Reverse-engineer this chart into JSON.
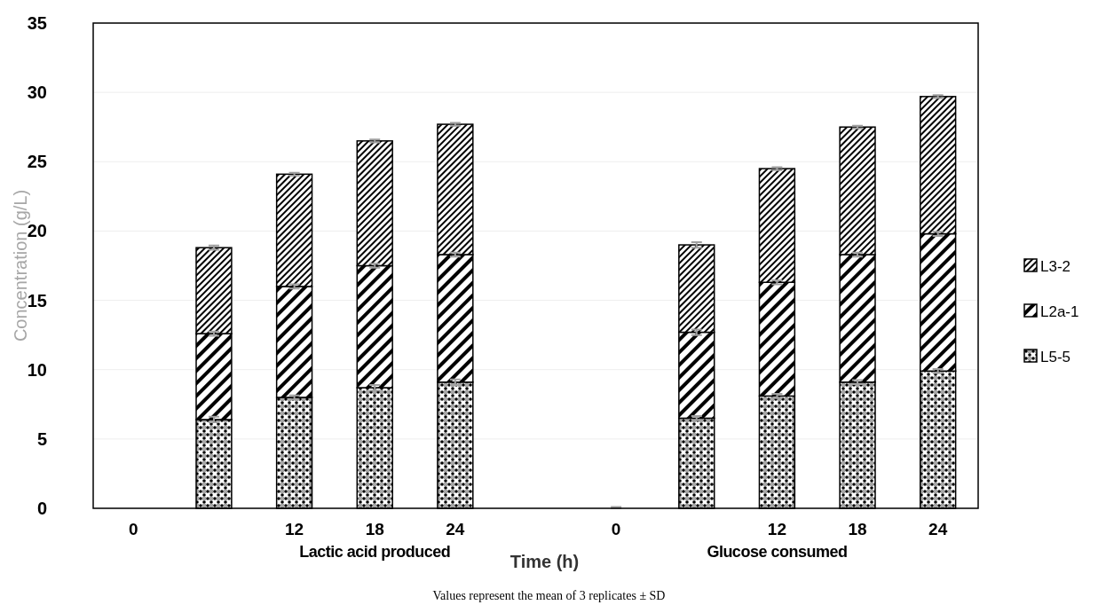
{
  "chart_data": {
    "type": "bar",
    "stacked": true,
    "xlabel": "Time (h)",
    "ylabel": "Concentration (g/L)",
    "categories": [
      "0",
      null,
      "12",
      "18",
      "24",
      null,
      "0",
      null,
      "12",
      "18",
      "24"
    ],
    "series": [
      {
        "name": "L5-5",
        "color": "#000000",
        "values": [
          0,
          6.4,
          8.0,
          8.7,
          9.1,
          null,
          0,
          6.5,
          8.1,
          9.1,
          9.9
        ],
        "errors": [
          null,
          0.2,
          0.15,
          0.2,
          0.2,
          null,
          [
            0,
            0.1
          ],
          0.15,
          0.15,
          0.15,
          0.15
        ]
      },
      {
        "name": "L2a-1",
        "color": "#000000",
        "values": [
          0,
          6.2,
          8.0,
          8.8,
          9.2,
          null,
          0,
          6.2,
          8.2,
          9.2,
          9.9
        ],
        "errors": [
          null,
          0.15,
          0.15,
          0.15,
          0.15,
          null,
          null,
          0.2,
          0.15,
          0.15,
          0.15
        ]
      },
      {
        "name": "L3-2",
        "color": "#000000",
        "values": [
          0,
          6.2,
          8.1,
          9.0,
          9.4,
          null,
          0,
          6.3,
          8.2,
          9.2,
          9.9
        ],
        "errors": [
          null,
          0.15,
          0.1,
          0.1,
          0.1,
          null,
          null,
          0.2,
          0.1,
          0.1,
          0.1
        ]
      }
    ],
    "ylim": [
      0,
      35
    ],
    "yticks": [
      0,
      5,
      10,
      15,
      20,
      25,
      30,
      35
    ],
    "grid": "y",
    "legend": "right",
    "annotations": [
      "Lactic acid produced",
      "Glucose consumed",
      "Values represent the mean of 3 replicates ± SD"
    ]
  }
}
